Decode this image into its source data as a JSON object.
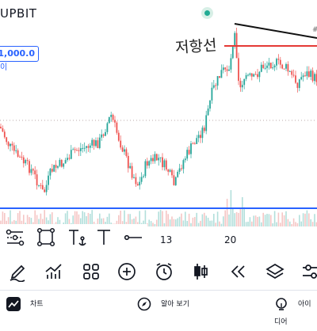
{
  "header": {
    "exchange": "UPBIT",
    "live_dot_color": "#22ab94"
  },
  "price_label": {
    "value": "1,000.0",
    "sub": "이"
  },
  "annotation": {
    "text": "저항선",
    "hash": "#"
  },
  "drawing_toolbar": {
    "tools": [
      "node-path-icon",
      "rectangle-icon",
      "text-anchor-icon",
      "text-icon",
      "horizontal-ray-icon"
    ]
  },
  "time_axis": {
    "ticks": [
      "13",
      "20"
    ]
  },
  "bottom_toolbar": {
    "tools": [
      "pencil-icon",
      "indicators-icon",
      "grid-icon",
      "add-icon",
      "alarm-icon",
      "candles-icon",
      "rewind-icon",
      "layers-icon",
      "settings-icon"
    ]
  },
  "nav": {
    "items": [
      {
        "icon": "chart-icon",
        "label": "차트"
      },
      {
        "icon": "compass-icon",
        "label": "알아 보기"
      },
      {
        "icon": "idea-icon",
        "label": "아이디어"
      }
    ]
  },
  "colors": {
    "up": "#26a69a",
    "down": "#ef5350",
    "support_line": "#2962ff",
    "resistance_line": "#e53935",
    "trend_line": "#111111"
  }
}
